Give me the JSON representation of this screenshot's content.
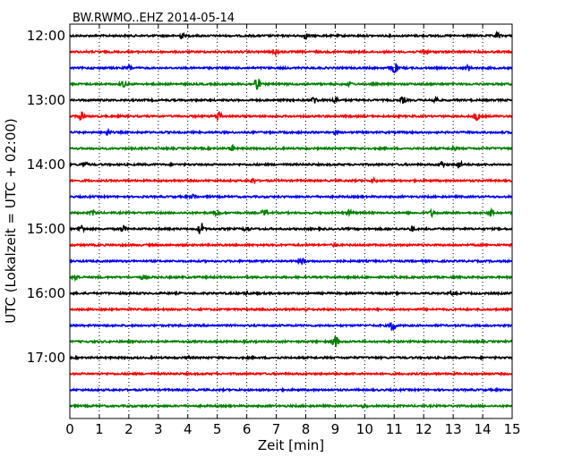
{
  "chart_data": {
    "type": "line",
    "title": "BW.RWMO..EHZ 2014-05-14",
    "xlabel": "Zeit  [min]",
    "ylabel": "UTC (Lokalzeit = UTC + 02:00)",
    "xlim": [
      0,
      15
    ],
    "x_ticks": [
      0,
      1,
      2,
      3,
      4,
      5,
      6,
      7,
      8,
      9,
      10,
      11,
      12,
      13,
      14,
      15
    ],
    "x_tick_labels": [
      "0",
      "1",
      "2",
      "3",
      "4",
      "5",
      "6",
      "7",
      "8",
      "9",
      "10",
      "11",
      "12",
      "13",
      "14",
      "15"
    ],
    "y_tick_labels": [
      "12:00",
      "13:00",
      "14:00",
      "15:00",
      "16:00",
      "17:00"
    ],
    "y_tick_rows": [
      0,
      4,
      8,
      12,
      16,
      20
    ],
    "grid": "vertical dotted",
    "colors": [
      "#000000",
      "#ff0000",
      "#0000ff",
      "#008000"
    ],
    "series": [
      {
        "start": "12:00",
        "color": "#000000",
        "events": [
          {
            "x": 3.8,
            "amp": 0.2
          },
          {
            "x": 8.0,
            "amp": 0.2
          },
          {
            "x": 14.5,
            "amp": 0.2
          }
        ]
      },
      {
        "start": "12:15",
        "color": "#ff0000",
        "events": [
          {
            "x": 7.0,
            "amp": 0.2
          },
          {
            "x": 12.0,
            "amp": 0.2
          }
        ]
      },
      {
        "start": "12:30",
        "color": "#0000ff",
        "events": [
          {
            "x": 2.0,
            "amp": 0.2
          },
          {
            "x": 11.0,
            "amp": 0.55
          },
          {
            "x": 13.5,
            "amp": 0.2
          }
        ]
      },
      {
        "start": "12:45",
        "color": "#008000",
        "events": [
          {
            "x": 1.8,
            "amp": 0.25
          },
          {
            "x": 6.35,
            "amp": 0.6
          },
          {
            "x": 9.5,
            "amp": 0.15
          }
        ]
      },
      {
        "start": "13:00",
        "color": "#000000",
        "events": [
          {
            "x": 8.3,
            "amp": 0.3
          },
          {
            "x": 9.0,
            "amp": 0.25
          },
          {
            "x": 11.3,
            "amp": 0.25
          },
          {
            "x": 12.4,
            "amp": 0.25
          }
        ]
      },
      {
        "start": "13:15",
        "color": "#ff0000",
        "events": [
          {
            "x": 0.4,
            "amp": 0.35
          },
          {
            "x": 5.05,
            "amp": 0.45
          },
          {
            "x": 13.8,
            "amp": 0.3
          }
        ]
      },
      {
        "start": "13:30",
        "color": "#0000ff",
        "events": [
          {
            "x": 1.3,
            "amp": 0.2
          },
          {
            "x": 9.0,
            "amp": 0.15
          }
        ]
      },
      {
        "start": "13:45",
        "color": "#008000",
        "events": [
          {
            "x": 5.5,
            "amp": 0.2
          },
          {
            "x": 13.0,
            "amp": 0.15
          }
        ]
      },
      {
        "start": "14:00",
        "color": "#000000",
        "events": [
          {
            "x": 0.5,
            "amp": 0.2
          },
          {
            "x": 12.6,
            "amp": 0.3
          },
          {
            "x": 13.2,
            "amp": 0.3
          }
        ]
      },
      {
        "start": "14:15",
        "color": "#ff0000",
        "events": [
          {
            "x": 6.2,
            "amp": 0.2
          },
          {
            "x": 10.3,
            "amp": 0.15
          }
        ]
      },
      {
        "start": "14:30",
        "color": "#0000ff",
        "events": [
          {
            "x": 4.2,
            "amp": 0.15
          }
        ]
      },
      {
        "start": "14:45",
        "color": "#008000",
        "events": [
          {
            "x": 0.8,
            "amp": 0.2
          },
          {
            "x": 5.0,
            "amp": 0.2
          },
          {
            "x": 6.6,
            "amp": 0.25
          },
          {
            "x": 9.5,
            "amp": 0.2
          },
          {
            "x": 12.3,
            "amp": 0.25
          },
          {
            "x": 14.3,
            "amp": 0.25
          }
        ]
      },
      {
        "start": "15:00",
        "color": "#000000",
        "events": [
          {
            "x": 0.4,
            "amp": 0.3
          },
          {
            "x": 1.8,
            "amp": 0.25
          },
          {
            "x": 4.45,
            "amp": 0.55
          },
          {
            "x": 6.0,
            "amp": 0.25
          },
          {
            "x": 11.6,
            "amp": 0.2
          }
        ]
      },
      {
        "start": "15:15",
        "color": "#ff0000",
        "events": [
          {
            "x": 9.0,
            "amp": 0.1
          }
        ]
      },
      {
        "start": "15:30",
        "color": "#0000ff",
        "events": [
          {
            "x": 7.9,
            "amp": 0.25
          }
        ]
      },
      {
        "start": "15:45",
        "color": "#008000",
        "events": [
          {
            "x": 0.2,
            "amp": 0.25
          },
          {
            "x": 2.5,
            "amp": 0.15
          }
        ]
      },
      {
        "start": "16:00",
        "color": "#000000",
        "events": [
          {
            "x": 6.0,
            "amp": 0.15
          },
          {
            "x": 13.0,
            "amp": 0.15
          }
        ]
      },
      {
        "start": "16:15",
        "color": "#ff0000",
        "events": [
          {
            "x": 8.0,
            "amp": 0.1
          }
        ]
      },
      {
        "start": "16:30",
        "color": "#0000ff",
        "events": [
          {
            "x": 10.95,
            "amp": 0.5
          }
        ]
      },
      {
        "start": "16:45",
        "color": "#008000",
        "events": [
          {
            "x": 9.0,
            "amp": 0.6
          }
        ]
      },
      {
        "start": "17:00",
        "color": "#000000",
        "events": [
          {
            "x": 4.0,
            "amp": 0.1
          }
        ]
      },
      {
        "start": "17:15",
        "color": "#ff0000",
        "events": []
      },
      {
        "start": "17:30",
        "color": "#0000ff",
        "events": []
      },
      {
        "start": "17:45",
        "color": "#008000",
        "events": [
          {
            "x": 10.0,
            "amp": 0.1
          }
        ]
      }
    ]
  }
}
